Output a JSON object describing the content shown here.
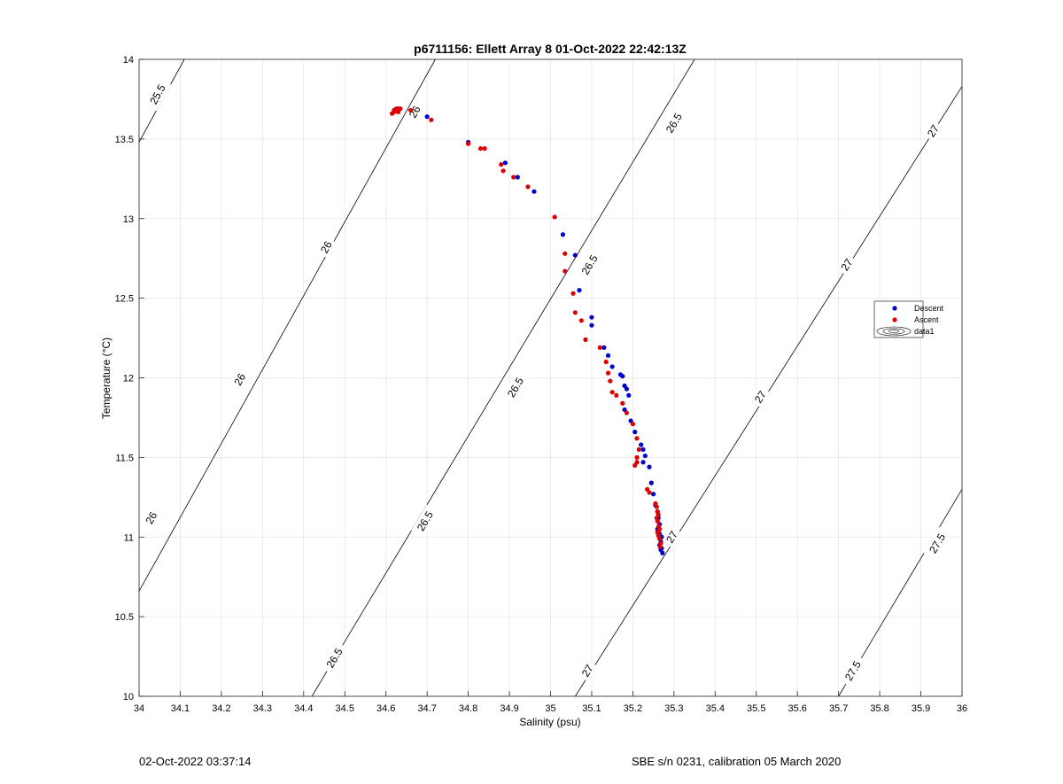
{
  "footer": {
    "left_text": "02-Oct-2022 03:37:14",
    "right_text": "SBE s/n 0231, calibration 05 March 2020"
  },
  "chart_data": {
    "type": "scatter",
    "title": "p6711156: Ellett Array 8 01-Oct-2022 22:42:13Z",
    "xlabel": "Salinity (psu)",
    "ylabel": "Temperature (°C)",
    "xlim": [
      34,
      36
    ],
    "ylim": [
      10,
      14
    ],
    "grid": true,
    "legend_position": "right",
    "x_ticks": [
      "34",
      "34.1",
      "34.2",
      "34.3",
      "34.4",
      "34.5",
      "34.6",
      "34.7",
      "34.8",
      "34.9",
      "35",
      "35.1",
      "35.2",
      "35.3",
      "35.4",
      "35.5",
      "35.6",
      "35.7",
      "35.8",
      "35.9",
      "36"
    ],
    "y_ticks": [
      "10",
      "10.5",
      "11",
      "11.5",
      "12",
      "12.5",
      "13",
      "13.5",
      "14"
    ],
    "legend": [
      "Descent",
      "Ascent",
      "data1"
    ],
    "colors": {
      "descent": "#0000cc",
      "ascent": "#dd0000",
      "contour": "#000000",
      "grid": "#e6e6e6"
    },
    "density_contours": [
      {
        "level": "25.5",
        "points": [
          [
            34.0,
            13.48
          ],
          [
            34.11,
            14.0
          ]
        ],
        "labels": [
          {
            "text": "25.5",
            "x": 34.045,
            "y": 13.78
          }
        ]
      },
      {
        "level": "26",
        "points": [
          [
            34.0,
            10.66
          ],
          [
            34.72,
            14.0
          ]
        ],
        "labels": [
          {
            "text": "26",
            "x": 34.03,
            "y": 11.12
          },
          {
            "text": "26",
            "x": 34.245,
            "y": 11.99
          },
          {
            "text": "26",
            "x": 34.455,
            "y": 12.82
          },
          {
            "text": "26",
            "x": 34.67,
            "y": 13.67
          }
        ]
      },
      {
        "level": "26.5",
        "points": [
          [
            34.42,
            10.0
          ],
          [
            35.35,
            14.0
          ]
        ],
        "labels": [
          {
            "text": "26.5",
            "x": 34.475,
            "y": 10.24
          },
          {
            "text": "26.5",
            "x": 34.695,
            "y": 11.1
          },
          {
            "text": "26.5",
            "x": 34.915,
            "y": 11.94
          },
          {
            "text": "26.5",
            "x": 35.095,
            "y": 12.71
          },
          {
            "text": "26.5",
            "x": 35.3,
            "y": 13.6
          }
        ]
      },
      {
        "level": "27",
        "points": [
          [
            35.06,
            10.0
          ],
          [
            36.0,
            13.83
          ]
        ],
        "labels": [
          {
            "text": "27",
            "x": 35.09,
            "y": 10.16
          },
          {
            "text": "27",
            "x": 35.295,
            "y": 11.0
          },
          {
            "text": "27",
            "x": 35.51,
            "y": 11.88
          },
          {
            "text": "27",
            "x": 35.72,
            "y": 12.71
          },
          {
            "text": "27",
            "x": 35.93,
            "y": 13.55
          }
        ]
      },
      {
        "level": "27.5",
        "points": [
          [
            35.7,
            10.0
          ],
          [
            36.0,
            11.3
          ]
        ],
        "labels": [
          {
            "text": "27.5",
            "x": 35.735,
            "y": 10.16
          },
          {
            "text": "27.5",
            "x": 35.94,
            "y": 10.96
          }
        ]
      }
    ],
    "series": [
      {
        "name": "Descent",
        "x": [
          34.62,
          34.63,
          34.7,
          34.8,
          34.89,
          34.92,
          34.96,
          35.03,
          35.06,
          35.07,
          35.1,
          35.1,
          35.13,
          35.14,
          35.15,
          35.17,
          35.175,
          35.18,
          35.185,
          35.19,
          35.18,
          35.195,
          35.205,
          35.22,
          35.225,
          35.23,
          35.225,
          35.24,
          35.245,
          35.25,
          35.255,
          35.26,
          35.262,
          35.265,
          35.26,
          35.265,
          35.27,
          35.268,
          35.265,
          35.27,
          35.268,
          35.272
        ],
        "y": [
          13.68,
          13.69,
          13.64,
          13.48,
          13.35,
          13.26,
          13.17,
          12.9,
          12.77,
          12.55,
          12.38,
          12.33,
          12.19,
          12.14,
          12.07,
          12.02,
          12.01,
          11.95,
          11.93,
          11.89,
          11.8,
          11.73,
          11.66,
          11.58,
          11.55,
          11.51,
          11.47,
          11.44,
          11.34,
          11.27,
          11.2,
          11.16,
          11.12,
          11.08,
          11.05,
          11.02,
          11.0,
          10.97,
          10.95,
          10.93,
          10.92,
          10.9
        ]
      },
      {
        "name": "Ascent",
        "x": [
          34.615,
          34.62,
          34.625,
          34.63,
          34.62,
          34.635,
          34.66,
          34.71,
          34.8,
          34.83,
          34.84,
          34.88,
          34.885,
          34.91,
          34.945,
          35.01,
          35.035,
          35.035,
          35.055,
          35.06,
          35.075,
          35.085,
          35.12,
          35.135,
          35.14,
          35.145,
          35.15,
          35.16,
          35.175,
          35.185,
          35.2,
          35.21,
          35.215,
          35.21,
          35.205,
          35.21,
          35.235,
          35.24,
          35.255,
          35.258,
          35.26,
          35.262,
          35.258,
          35.26,
          35.263,
          35.265,
          35.26,
          35.262,
          35.265,
          35.268,
          35.266
        ],
        "y": [
          13.66,
          13.67,
          13.69,
          13.67,
          13.68,
          13.69,
          13.68,
          13.62,
          13.47,
          13.44,
          13.44,
          13.34,
          13.3,
          13.26,
          13.2,
          13.01,
          12.78,
          12.67,
          12.53,
          12.41,
          12.36,
          12.24,
          12.19,
          12.1,
          12.03,
          11.98,
          11.91,
          11.89,
          11.84,
          11.78,
          11.71,
          11.62,
          11.55,
          11.5,
          11.45,
          11.47,
          11.3,
          11.28,
          11.21,
          11.19,
          11.16,
          11.14,
          11.12,
          11.1,
          11.07,
          11.05,
          11.03,
          11.01,
          10.99,
          10.96,
          10.94
        ]
      }
    ]
  }
}
